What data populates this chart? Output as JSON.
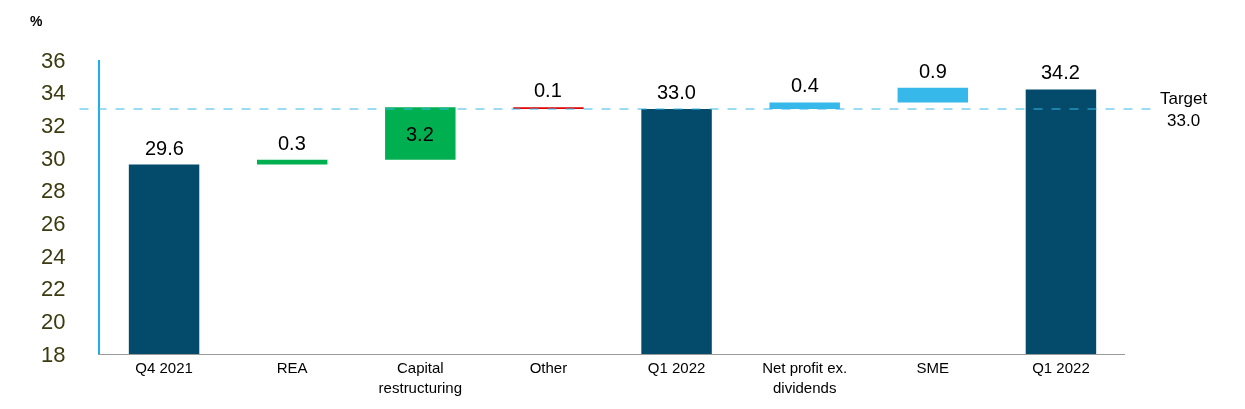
{
  "chart_data": {
    "type": "bar",
    "ylabel": "%",
    "categories": [
      "Q4 2021",
      "REA",
      "Capital restructuring",
      "Other",
      "Q1 2022",
      "Net profit ex. dividends",
      "SME",
      "Q1 2022"
    ],
    "values": [
      29.6,
      0.3,
      3.2,
      -0.1,
      33.0,
      0.4,
      0.9,
      34.2
    ],
    "base": [
      null,
      29.6,
      29.9,
      33.1,
      null,
      33.0,
      33.4,
      null
    ],
    "colors": [
      "#034a6b",
      "#00b050",
      "#00b050",
      "#e00000",
      "#034a6b",
      "#36b8ea",
      "#36b8ea",
      "#034a6b"
    ],
    "value_labels": [
      "29.6",
      "0.3",
      "3.2",
      "0.1",
      "33.0",
      "0.4",
      "0.9",
      "34.2"
    ],
    "ylim": [
      18,
      36
    ],
    "yticks": [
      18,
      20,
      22,
      24,
      26,
      28,
      30,
      32,
      34,
      36
    ],
    "ref_lines": [
      {
        "axis": "y",
        "value": 33.0,
        "label": "Target 33.0",
        "color": "#36b8ea",
        "line_style": "dashed"
      }
    ],
    "grid": false
  }
}
